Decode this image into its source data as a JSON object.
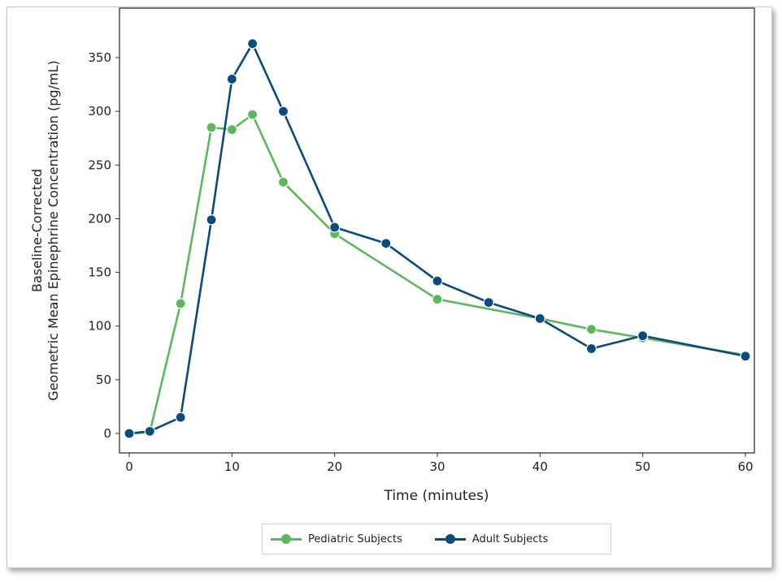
{
  "chart_data": {
    "type": "line",
    "xlabel": "Time (minutes)",
    "ylabel_lines": [
      "Baseline-Corrected",
      "Geometric Mean Epinephrine Concentration (pg/mL)"
    ],
    "xlim": [
      -1,
      61
    ],
    "ylim": [
      -18,
      382
    ],
    "xticks": [
      0,
      10,
      20,
      30,
      40,
      50,
      60
    ],
    "yticks": [
      0,
      50,
      100,
      150,
      200,
      250,
      300,
      350
    ],
    "grid": false,
    "legend_position": "bottom-center",
    "series": [
      {
        "name": "Pediatric Subjects",
        "color": "#5cb85c",
        "x": [
          0,
          2,
          5,
          8,
          10,
          12,
          15,
          20,
          30,
          40,
          45,
          50,
          60
        ],
        "y": [
          0,
          1,
          121,
          285,
          283,
          297,
          234,
          186,
          125,
          107,
          97,
          89,
          73
        ]
      },
      {
        "name": "Adult Subjects",
        "color": "#0b4a7d",
        "x": [
          0,
          2,
          5,
          8,
          10,
          12,
          15,
          20,
          25,
          30,
          35,
          40,
          45,
          50,
          60
        ],
        "y": [
          0,
          2,
          15,
          199,
          330,
          363,
          300,
          192,
          177,
          142,
          122,
          107,
          79,
          91,
          72
        ]
      }
    ]
  }
}
